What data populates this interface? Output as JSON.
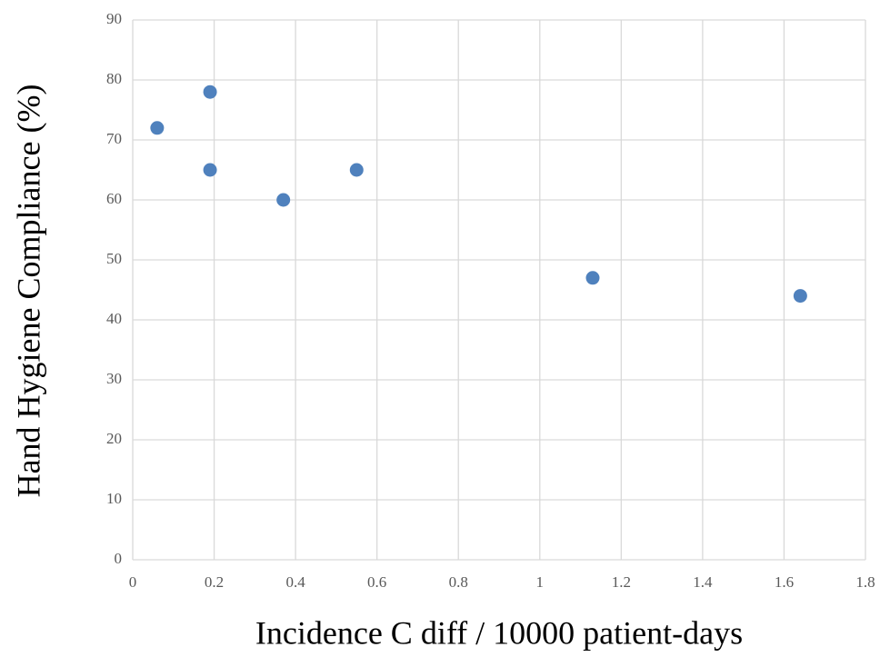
{
  "chart_data": {
    "type": "scatter",
    "x_label": "Incidence C diff / 10000 patient-days",
    "y_label": "Hand Hygiene Compliance (%)",
    "series": [
      {
        "color": "#4f81bd",
        "x": [
          0.06,
          0.19,
          0.19,
          0.37,
          0.55,
          1.13,
          1.64
        ],
        "values": [
          72,
          78,
          65,
          60,
          65,
          47,
          44
        ]
      }
    ],
    "xlim": [
      0,
      1.8
    ],
    "xticks": [
      0,
      0.2,
      0.4,
      0.6,
      0.8,
      1,
      1.2,
      1.4,
      1.6,
      1.8
    ],
    "ylim": [
      0,
      90
    ],
    "yticks": [
      0,
      10,
      20,
      30,
      40,
      50,
      60,
      70,
      80,
      90
    ],
    "grid": true
  }
}
